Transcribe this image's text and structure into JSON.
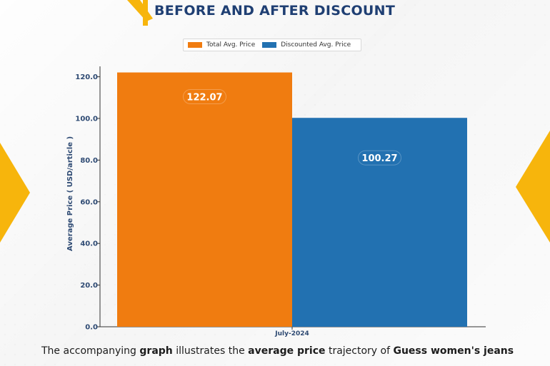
{
  "header": {
    "title": "BEFORE AND AFTER DISCOUNT"
  },
  "colors": {
    "total": "#f07c10",
    "discounted": "#2271b1",
    "accent": "#f7b50c",
    "title": "#1f3f73"
  },
  "chart_data": {
    "type": "bar",
    "categories": [
      "July-2024"
    ],
    "series": [
      {
        "name": "Total Avg. Price",
        "values": [
          122.07
        ],
        "color": "#f07c10"
      },
      {
        "name": "Discounted Avg. Price",
        "values": [
          100.27
        ],
        "color": "#2271b1"
      }
    ],
    "data_labels": [
      "122.07",
      "100.27"
    ],
    "ylabel": "Average Price ( USD/article )",
    "xlabel": "",
    "ylim": [
      0,
      125
    ],
    "yticks": [
      0,
      20,
      40,
      60,
      80,
      100,
      120
    ],
    "ytick_labels": [
      "0.0",
      "20.0",
      "40.0",
      "60.0",
      "80.0",
      "100.0",
      "120.0"
    ],
    "legend_position": "top-center",
    "grid": false
  },
  "caption": {
    "p1": "The accompanying ",
    "b1": "graph",
    "p2": " illustrates the ",
    "b2": "average price",
    "p3": " trajectory of ",
    "b3": "Guess women's jeans"
  }
}
